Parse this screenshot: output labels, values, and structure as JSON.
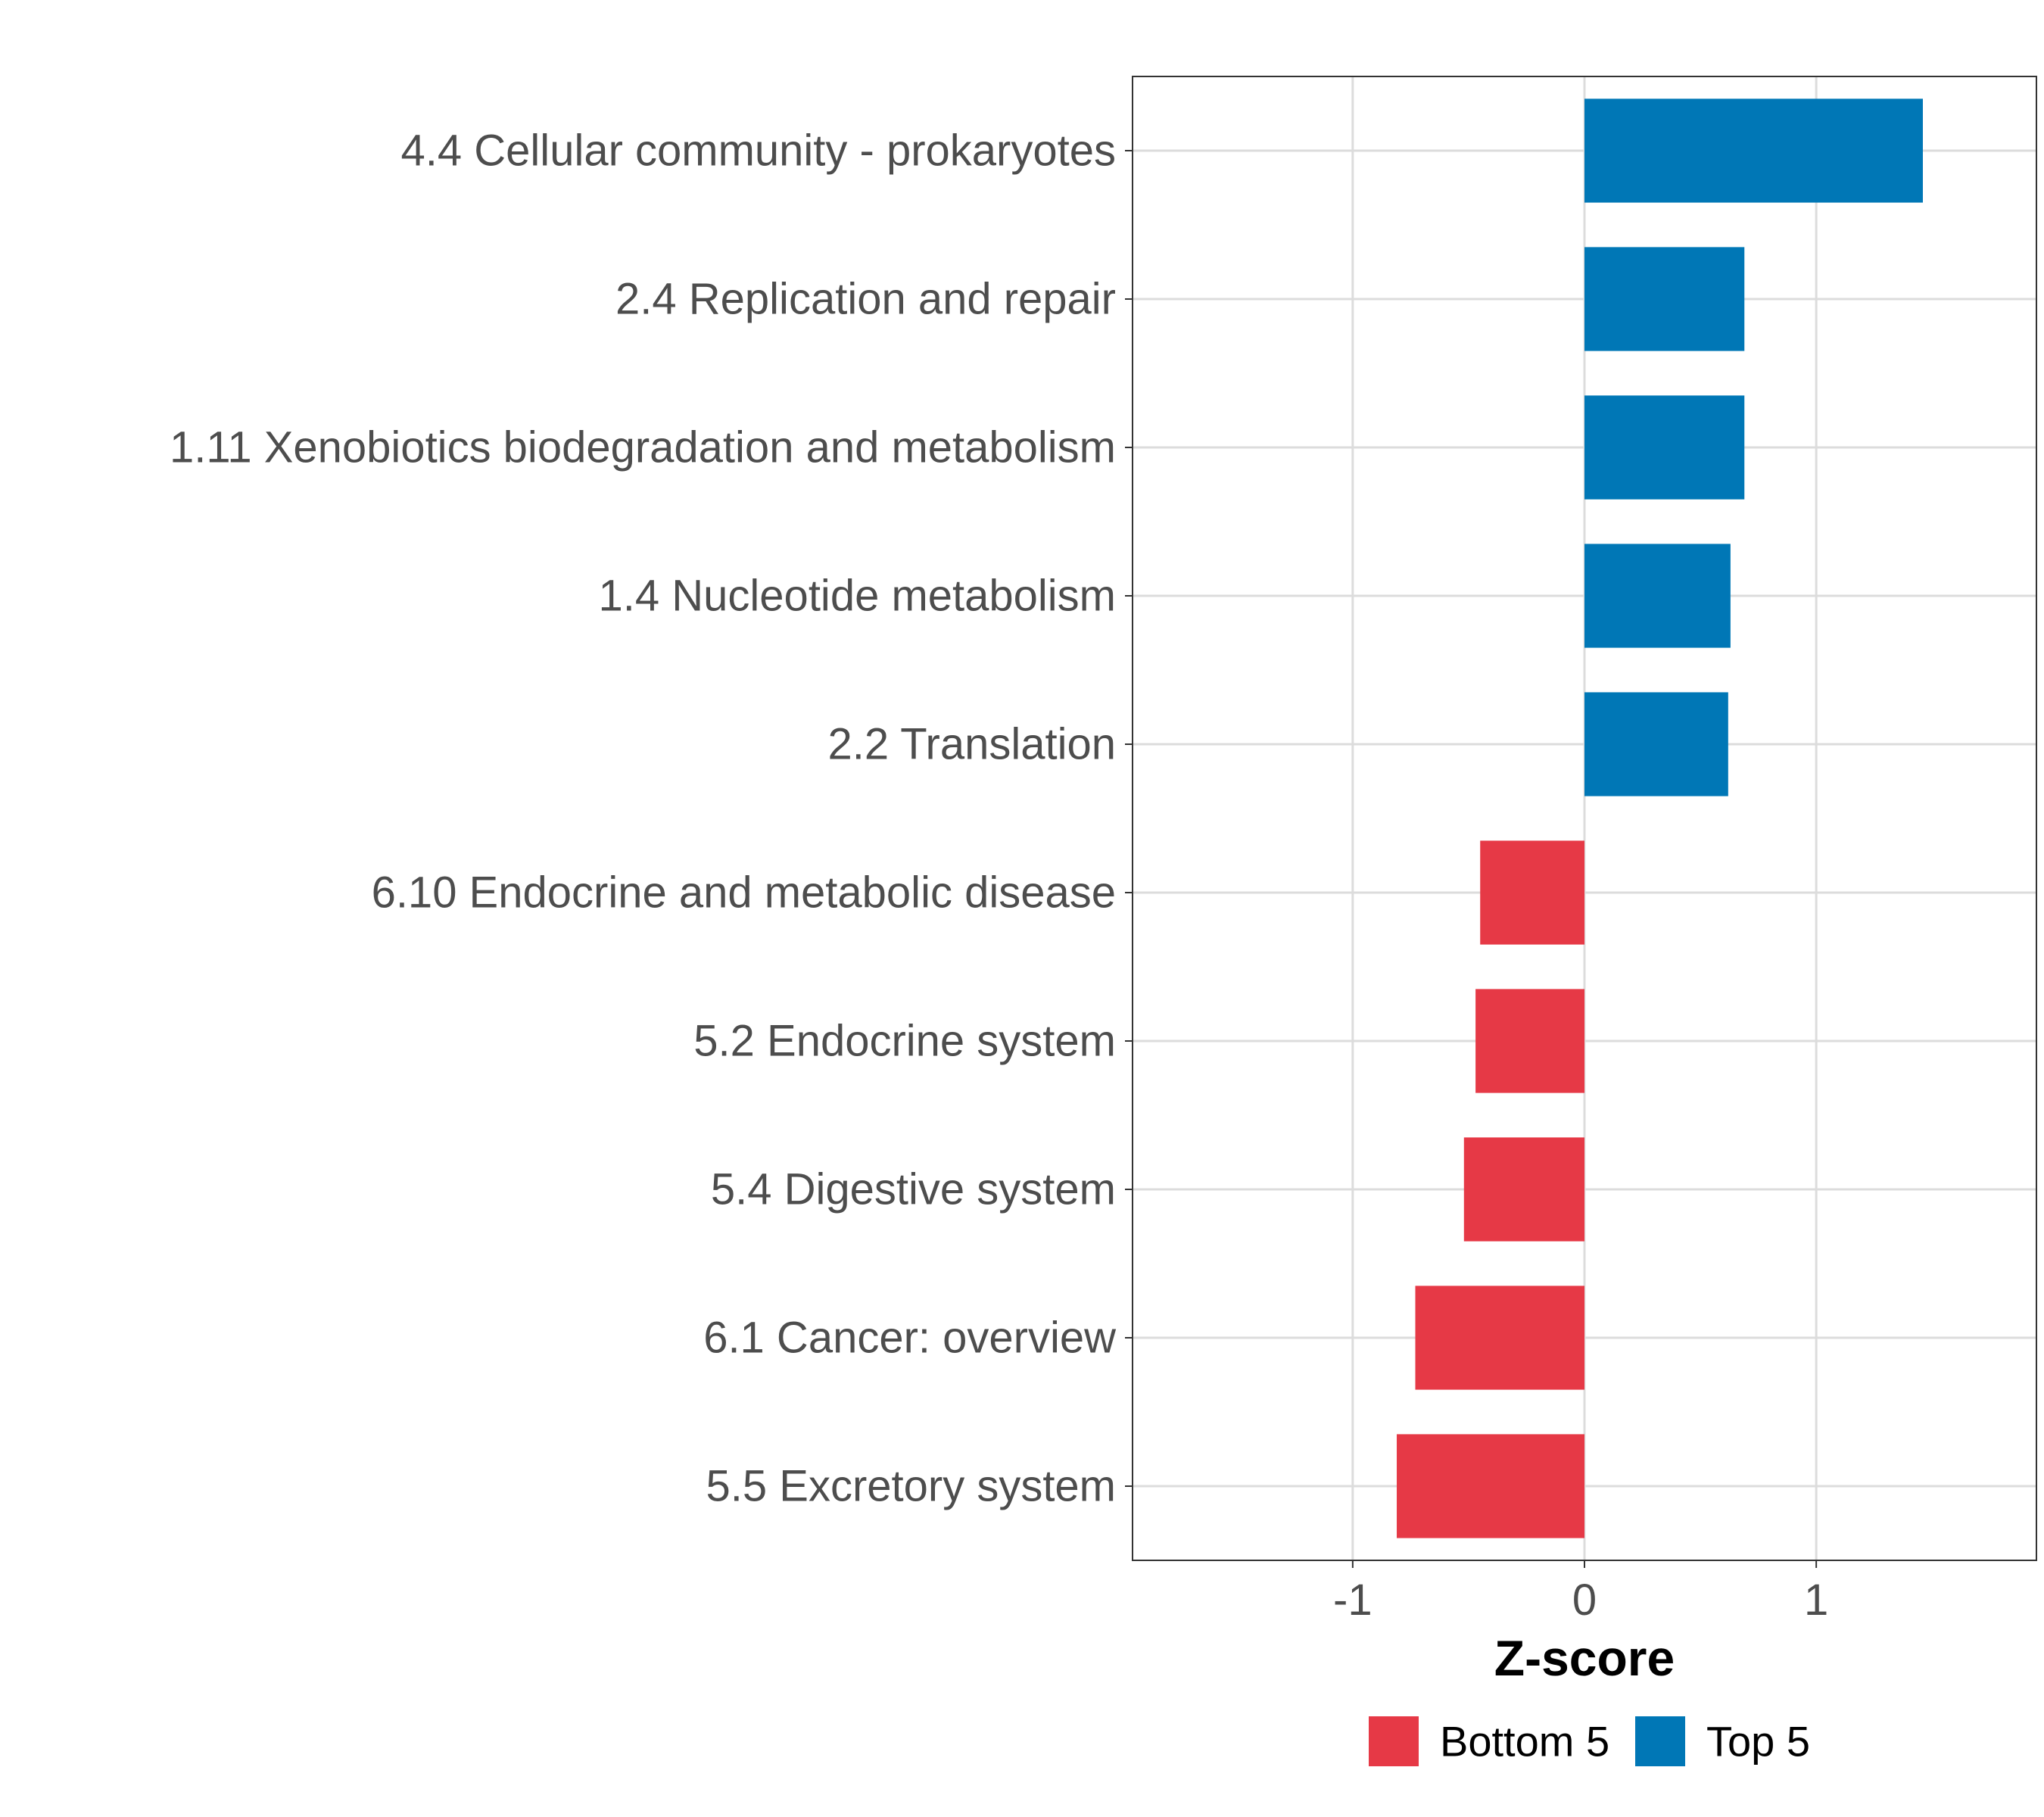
{
  "chart_data": {
    "type": "bar",
    "orientation": "horizontal",
    "title": "",
    "xlabel": "Z-score",
    "ylabel": "",
    "xlim": [
      -1.95,
      1.95
    ],
    "x_ticks": [
      -1,
      0,
      1
    ],
    "x_tick_labels": [
      "-1",
      "0",
      "1"
    ],
    "grid": true,
    "legend_position": "bottom",
    "categories": [
      "4.4 Cellular community - prokaryotes",
      "2.4 Replication and repair",
      "1.11 Xenobiotics biodegradation and metabolism",
      "1.4 Nucleotide metabolism",
      "2.2 Translation",
      "6.10 Endocrine and metabolic disease",
      "5.2 Endocrine system",
      "5.4 Digestive system",
      "6.1 Cancer: overview",
      "5.5 Excretory system"
    ],
    "values": [
      1.46,
      0.69,
      0.69,
      0.63,
      0.62,
      -0.45,
      -0.47,
      -0.52,
      -0.73,
      -0.81
    ],
    "groups": [
      "Top 5",
      "Top 5",
      "Top 5",
      "Top 5",
      "Top 5",
      "Bottom 5",
      "Bottom 5",
      "Bottom 5",
      "Bottom 5",
      "Bottom 5"
    ],
    "legend": [
      {
        "name": "Bottom 5",
        "color": "#E63946"
      },
      {
        "name": "Top 5",
        "color": "#0077B6"
      }
    ]
  }
}
